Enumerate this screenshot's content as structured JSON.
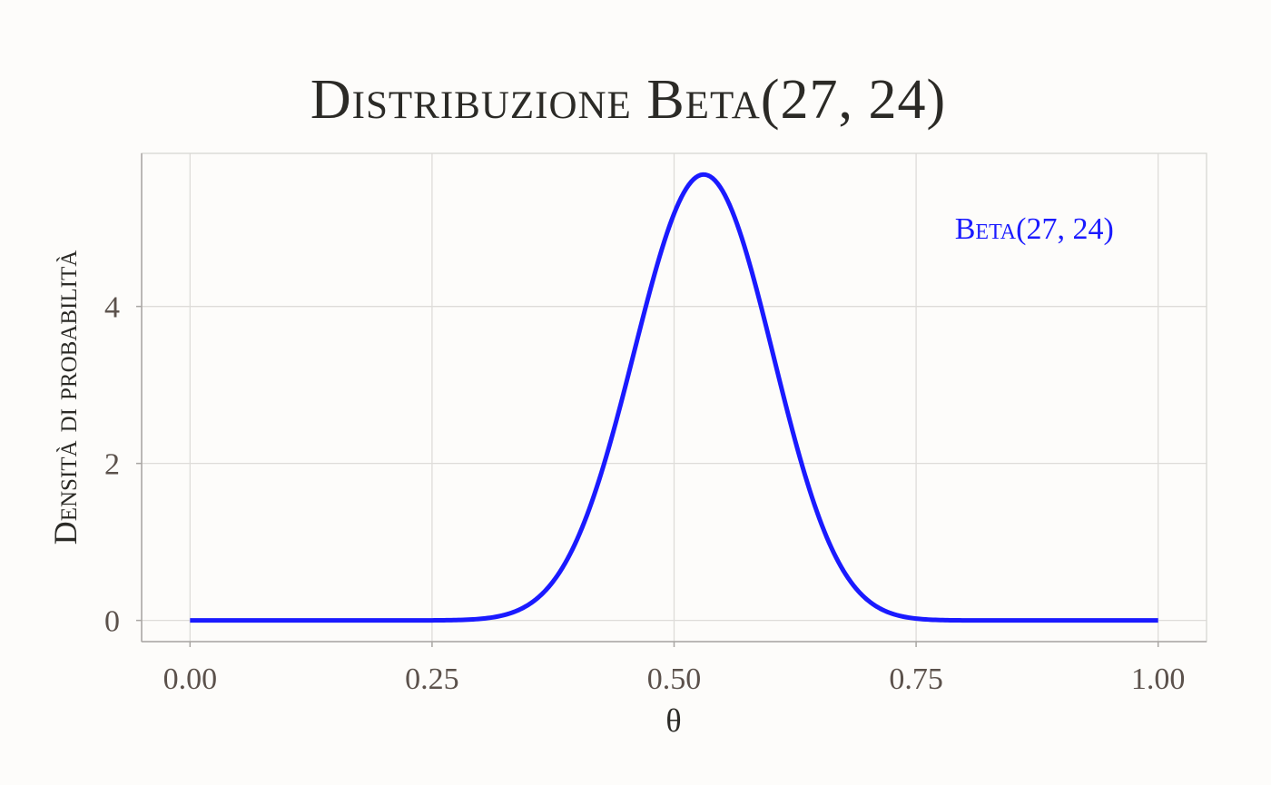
{
  "chart_data": {
    "type": "line",
    "title": "Distribuzione Beta(27, 24)",
    "xlabel": "θ",
    "ylabel": "Densità di probabilità",
    "xlim": [
      -0.05,
      1.05
    ],
    "ylim": [
      -0.27,
      5.95
    ],
    "x_ticks": [
      0.0,
      0.25,
      0.5,
      0.75,
      1.0
    ],
    "x_tick_labels": [
      "0.00",
      "0.25",
      "0.50",
      "0.75",
      "1.00"
    ],
    "y_ticks": [
      0,
      2,
      4
    ],
    "y_tick_labels": [
      "0",
      "2",
      "4"
    ],
    "grid": true,
    "series": [
      {
        "color": "#1a1aff",
        "distribution": {
          "family": "beta",
          "alpha": 27,
          "beta": 24
        },
        "x": [
          0.0,
          0.25,
          0.3,
          0.35,
          0.4,
          0.45,
          0.5,
          0.53,
          0.55,
          0.6,
          0.65,
          0.7,
          0.75,
          0.8,
          1.0
        ],
        "y": [
          0.0,
          0.01,
          0.07,
          0.42,
          1.5,
          3.4,
          5.2,
          5.67,
          5.5,
          4.3,
          2.2,
          0.75,
          0.16,
          0.02,
          0.0
        ]
      }
    ],
    "annotations": [
      {
        "text": "Beta(27, 24)",
        "x": 0.79,
        "y": 5.0,
        "color": "#1a1aff"
      }
    ]
  }
}
